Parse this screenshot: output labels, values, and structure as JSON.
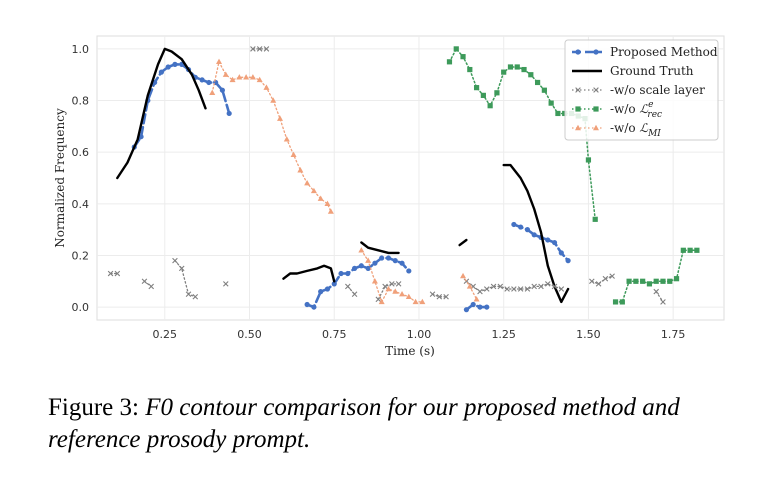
{
  "chart_data": {
    "type": "line",
    "xlabel": "Time (s)",
    "ylabel": "Normalized Frequency",
    "xlim": [
      0.05,
      1.9
    ],
    "ylim": [
      -0.05,
      1.05
    ],
    "xticks": [
      "0.25",
      "0.50",
      "0.75",
      "1.00",
      "1.25",
      "1.50",
      "1.75"
    ],
    "yticks": [
      "0.0",
      "0.2",
      "0.4",
      "0.6",
      "0.8",
      "1.0"
    ],
    "grid": true,
    "legend_position": "top-right",
    "series": [
      {
        "name": "Proposed Method",
        "color": "#4472c4",
        "segments": [
          [
            [
              0.16,
              0.62
            ],
            [
              0.18,
              0.66
            ],
            [
              0.2,
              0.8
            ],
            [
              0.22,
              0.87
            ],
            [
              0.24,
              0.91
            ],
            [
              0.26,
              0.93
            ],
            [
              0.28,
              0.94
            ],
            [
              0.3,
              0.94
            ],
            [
              0.32,
              0.92
            ],
            [
              0.34,
              0.89
            ],
            [
              0.36,
              0.88
            ],
            [
              0.38,
              0.87
            ],
            [
              0.4,
              0.87
            ],
            [
              0.42,
              0.84
            ],
            [
              0.44,
              0.75
            ]
          ],
          [
            [
              0.67,
              0.01
            ],
            [
              0.69,
              0.0
            ],
            [
              0.71,
              0.06
            ],
            [
              0.73,
              0.07
            ],
            [
              0.75,
              0.09
            ],
            [
              0.77,
              0.13
            ],
            [
              0.79,
              0.13
            ],
            [
              0.81,
              0.15
            ],
            [
              0.83,
              0.16
            ],
            [
              0.85,
              0.15
            ],
            [
              0.87,
              0.17
            ],
            [
              0.89,
              0.19
            ],
            [
              0.91,
              0.19
            ],
            [
              0.93,
              0.18
            ],
            [
              0.95,
              0.17
            ],
            [
              0.97,
              0.14
            ]
          ],
          [
            [
              1.14,
              -0.01
            ],
            [
              1.16,
              0.01
            ],
            [
              1.18,
              0.0
            ],
            [
              1.2,
              0.0
            ]
          ],
          [
            [
              1.28,
              0.32
            ],
            [
              1.3,
              0.31
            ],
            [
              1.32,
              0.3
            ],
            [
              1.34,
              0.28
            ],
            [
              1.36,
              0.27
            ],
            [
              1.38,
              0.26
            ],
            [
              1.4,
              0.25
            ],
            [
              1.42,
              0.21
            ],
            [
              1.44,
              0.18
            ]
          ]
        ]
      },
      {
        "name": "Ground Truth",
        "color": "#000000",
        "segments": [
          [
            [
              0.11,
              0.5
            ],
            [
              0.14,
              0.56
            ],
            [
              0.17,
              0.65
            ],
            [
              0.2,
              0.82
            ],
            [
              0.23,
              0.94
            ],
            [
              0.25,
              1.0
            ],
            [
              0.27,
              0.99
            ],
            [
              0.3,
              0.96
            ],
            [
              0.33,
              0.9
            ],
            [
              0.35,
              0.84
            ],
            [
              0.37,
              0.77
            ]
          ],
          [
            [
              0.6,
              0.11
            ],
            [
              0.62,
              0.13
            ],
            [
              0.64,
              0.13
            ],
            [
              0.67,
              0.14
            ],
            [
              0.7,
              0.15
            ],
            [
              0.72,
              0.16
            ],
            [
              0.74,
              0.15
            ],
            [
              0.75,
              0.1
            ]
          ],
          [
            [
              0.83,
              0.25
            ],
            [
              0.85,
              0.23
            ],
            [
              0.88,
              0.22
            ],
            [
              0.91,
              0.21
            ],
            [
              0.94,
              0.21
            ]
          ],
          [
            [
              1.12,
              0.24
            ],
            [
              1.14,
              0.26
            ]
          ],
          [
            [
              1.25,
              0.55
            ],
            [
              1.27,
              0.55
            ],
            [
              1.3,
              0.5
            ],
            [
              1.32,
              0.45
            ],
            [
              1.34,
              0.38
            ],
            [
              1.36,
              0.29
            ],
            [
              1.38,
              0.16
            ],
            [
              1.4,
              0.08
            ],
            [
              1.42,
              0.02
            ],
            [
              1.44,
              0.07
            ]
          ]
        ]
      },
      {
        "name": "-w/o scale layer",
        "color": "#7f7f7f",
        "segments": [
          [
            [
              0.09,
              0.13
            ],
            [
              0.11,
              0.13
            ]
          ],
          [
            [
              0.19,
              0.1
            ],
            [
              0.21,
              0.08
            ]
          ],
          [
            [
              0.28,
              0.18
            ],
            [
              0.3,
              0.15
            ],
            [
              0.32,
              0.05
            ],
            [
              0.34,
              0.04
            ]
          ],
          [
            [
              0.43,
              0.09
            ]
          ],
          [
            [
              0.51,
              1.0
            ],
            [
              0.53,
              1.0
            ],
            [
              0.55,
              1.0
            ]
          ],
          [
            [
              0.79,
              0.08
            ],
            [
              0.81,
              0.05
            ]
          ],
          [
            [
              0.88,
              0.03
            ],
            [
              0.9,
              0.08
            ],
            [
              0.92,
              0.09
            ],
            [
              0.94,
              0.09
            ]
          ],
          [
            [
              1.04,
              0.05
            ],
            [
              1.06,
              0.04
            ],
            [
              1.08,
              0.04
            ]
          ],
          [
            [
              1.14,
              0.1
            ],
            [
              1.16,
              0.08
            ],
            [
              1.18,
              0.06
            ],
            [
              1.2,
              0.07
            ],
            [
              1.22,
              0.08
            ],
            [
              1.24,
              0.08
            ],
            [
              1.26,
              0.07
            ],
            [
              1.28,
              0.07
            ],
            [
              1.3,
              0.07
            ],
            [
              1.32,
              0.07
            ],
            [
              1.34,
              0.08
            ],
            [
              1.36,
              0.08
            ],
            [
              1.38,
              0.09
            ],
            [
              1.4,
              0.08
            ],
            [
              1.42,
              0.07
            ]
          ],
          [
            [
              1.51,
              0.1
            ],
            [
              1.53,
              0.09
            ],
            [
              1.55,
              0.11
            ],
            [
              1.57,
              0.12
            ]
          ],
          [
            [
              1.7,
              0.06
            ],
            [
              1.72,
              0.02
            ]
          ]
        ]
      },
      {
        "name": "-w/o L^e_rec",
        "label_base": "-w/o",
        "label_sym": "ℒ",
        "label_sup": "e",
        "label_sub": "rec",
        "color": "#3d9a5a",
        "segments": [
          [
            [
              1.09,
              0.95
            ],
            [
              1.11,
              1.0
            ],
            [
              1.13,
              0.97
            ],
            [
              1.15,
              0.92
            ],
            [
              1.17,
              0.85
            ],
            [
              1.19,
              0.82
            ],
            [
              1.21,
              0.78
            ],
            [
              1.23,
              0.83
            ],
            [
              1.25,
              0.91
            ],
            [
              1.27,
              0.93
            ],
            [
              1.29,
              0.93
            ],
            [
              1.31,
              0.92
            ],
            [
              1.33,
              0.9
            ],
            [
              1.35,
              0.87
            ],
            [
              1.37,
              0.84
            ],
            [
              1.39,
              0.79
            ],
            [
              1.41,
              0.75
            ],
            [
              1.43,
              0.75
            ],
            [
              1.45,
              0.75
            ],
            [
              1.47,
              0.74
            ],
            [
              1.49,
              0.73
            ],
            [
              1.5,
              0.57
            ],
            [
              1.52,
              0.34
            ]
          ],
          [
            [
              1.58,
              0.02
            ],
            [
              1.6,
              0.02
            ],
            [
              1.62,
              0.1
            ],
            [
              1.64,
              0.1
            ],
            [
              1.66,
              0.1
            ],
            [
              1.68,
              0.09
            ],
            [
              1.7,
              0.1
            ],
            [
              1.72,
              0.1
            ],
            [
              1.74,
              0.1
            ],
            [
              1.76,
              0.11
            ],
            [
              1.78,
              0.22
            ],
            [
              1.8,
              0.22
            ],
            [
              1.82,
              0.22
            ]
          ]
        ]
      },
      {
        "name": "-w/o L_MI",
        "label_base": "-w/o",
        "label_sym": "ℒ",
        "label_sub": "MI",
        "color": "#f0a07a",
        "segments": [
          [
            [
              0.39,
              0.83
            ],
            [
              0.41,
              0.95
            ],
            [
              0.43,
              0.9
            ],
            [
              0.45,
              0.88
            ],
            [
              0.47,
              0.89
            ],
            [
              0.49,
              0.89
            ],
            [
              0.51,
              0.89
            ],
            [
              0.53,
              0.88
            ],
            [
              0.55,
              0.85
            ],
            [
              0.57,
              0.8
            ],
            [
              0.59,
              0.73
            ],
            [
              0.61,
              0.65
            ],
            [
              0.63,
              0.59
            ],
            [
              0.65,
              0.53
            ],
            [
              0.67,
              0.48
            ],
            [
              0.69,
              0.45
            ],
            [
              0.71,
              0.42
            ],
            [
              0.73,
              0.4
            ],
            [
              0.74,
              0.37
            ]
          ],
          [
            [
              0.83,
              0.22
            ],
            [
              0.85,
              0.18
            ],
            [
              0.87,
              0.1
            ],
            [
              0.89,
              0.02
            ],
            [
              0.91,
              0.07
            ],
            [
              0.93,
              0.06
            ],
            [
              0.95,
              0.05
            ],
            [
              0.97,
              0.04
            ],
            [
              0.99,
              0.02
            ],
            [
              1.01,
              0.02
            ]
          ],
          [
            [
              1.13,
              0.12
            ],
            [
              1.15,
              0.08
            ],
            [
              1.17,
              0.03
            ]
          ]
        ]
      }
    ]
  },
  "caption": {
    "lead": "Figure 3: ",
    "rest": "F0 contour comparison for our proposed method and reference prosody prompt."
  }
}
